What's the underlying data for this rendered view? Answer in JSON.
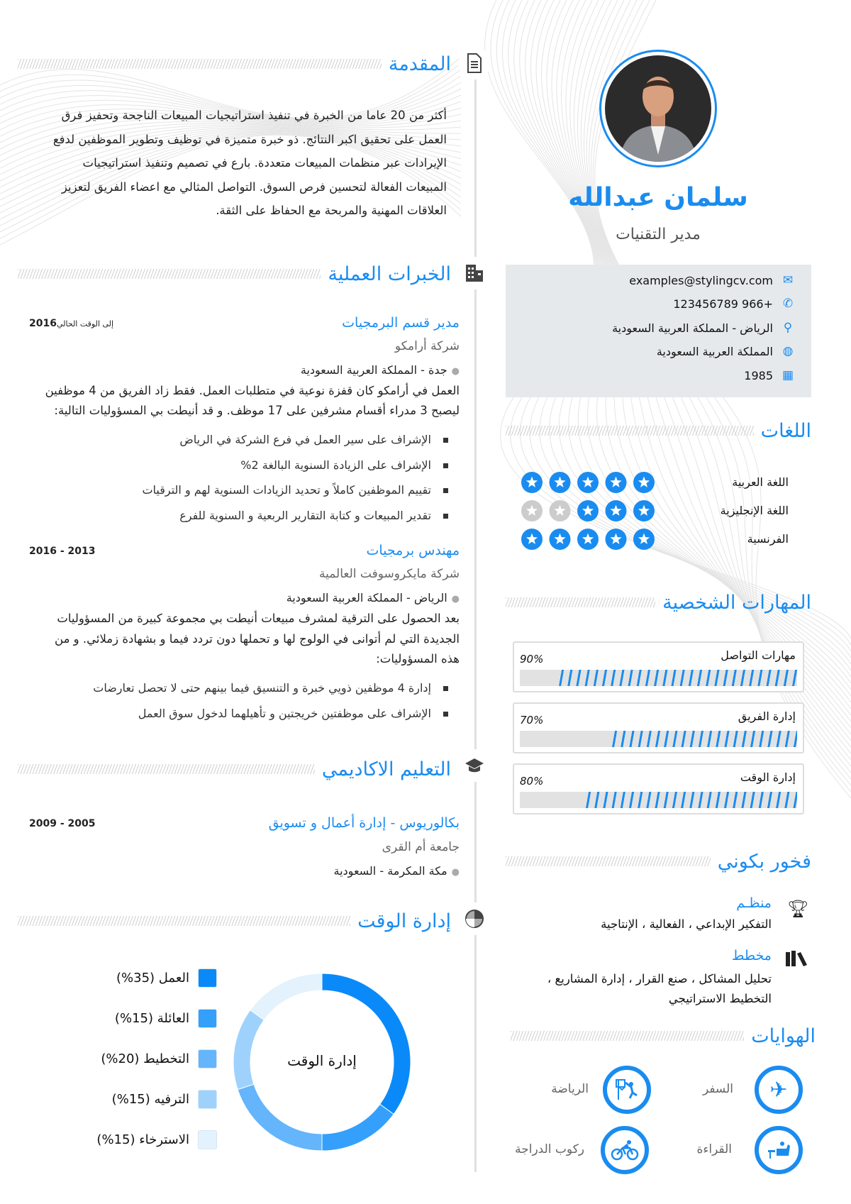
{
  "profile": {
    "name": "سلمان عبدالله",
    "title": "مدير التقنيات"
  },
  "contact": [
    {
      "icon": "envelope-icon",
      "value": "examples@stylingcv.com"
    },
    {
      "icon": "phone-icon",
      "value": "123456789 966+"
    },
    {
      "icon": "map-pin-icon",
      "value": "الرياض - المملكة العربية السعودية"
    },
    {
      "icon": "globe-icon",
      "value": "المملكة العربية السعودية"
    },
    {
      "icon": "calendar-icon",
      "value": "1985"
    }
  ],
  "sections": {
    "intro": "المقدمة",
    "experience": "الخبرات العملية",
    "education": "التعليم الاكاديمي",
    "time": "إدارة الوقت",
    "languages": "اللغات",
    "skills": "المهارات الشخصية",
    "achievements": "فخور بكوني",
    "hobbies": "الهوايات"
  },
  "intro": {
    "text": "أكثر من 20 عاما من الخبرة في تنفيذ استراتيجيات المبيعات الناجحة وتحفيز فرق العمل على تحقيق اكبر النتائج. ذو خبرة متميزة في توظيف وتطوير الموظفين لدفع الإيرادات عبر منظمات المبيعات متعددة. بارع في تصميم وتنفيذ استراتيجيات المبيعات الفعالة لتحسين فرص السوق. التواصل المثالي مع اعضاء الفريق لتعزيز العلاقات المهنية والمربحة مع الحفاظ على الثقة."
  },
  "experience": [
    {
      "title": "مدير قسم البرمجيات",
      "company": "شركة أرامكو",
      "location": "جدة - المملكة العربية السعودية",
      "date_year": "2016",
      "date_text": "إلى الوقت الحالي",
      "description": "العمل في أرامكو كان قفزة نوعية في متطلبات العمل. فقط زاد الفريق من 4 موظفين ليصبح 3 مدراء أقسام مشرفين على 17 موظف. و قد أنيطت بي المسؤوليات التالية:",
      "bullets": [
        "الإشراف على سير العمل في فرع الشركة في الرياض",
        "الإشراف على الزيادة السنوية البالغة 2%",
        "تقييم الموظفين كاملاً و تحديد الزيادات السنوية لهم و الترقيات",
        "تقدير المبيعات و كتابة التقارير الربعية و السنوية للفرع"
      ]
    },
    {
      "title": "مهندس برمجيات",
      "company": "شركة مايكروسوفت العالمية",
      "location": "الرياض - المملكة العربية السعودية",
      "date_year": "2016 - 2013",
      "date_text": "",
      "description": "بعد الحصول على الترقية لمشرف مبيعات أنيطت بي مجموعة كبيرة من المسؤوليات الجديدة التي لم أتوانى في الولوج لها و تحملها دون تردد فيما و بشهادة زملائي. و من هذه المسؤوليات:",
      "bullets": [
        "إدارة 4 موظفين ذويي خبرة و التنسيق فيما بينهم حتى لا تحصل تعارضات",
        "الإشراف على موظفتين خريجتين و تأهيلهما لدخول سوق العمل"
      ]
    }
  ],
  "education": [
    {
      "title": "بكالوريوس - إدارة أعمال و تسويق",
      "school": "جامعة أم القرى",
      "location": "مكة المكرمة - السعودية",
      "date": "2009 - 2005"
    }
  ],
  "languages": [
    {
      "name": "اللغة العربية",
      "rating": 5
    },
    {
      "name": "اللغة الإنجليزية",
      "rating": 3
    },
    {
      "name": "الفرنسية",
      "rating": 5
    }
  ],
  "skills": [
    {
      "name": "مهارات التواصل",
      "label": "90%",
      "value": 90
    },
    {
      "name": "إدارة الفريق",
      "label": "70%",
      "value": 70
    },
    {
      "name": "إدارة الوقت",
      "label": "80%",
      "value": 80
    }
  ],
  "achievements": [
    {
      "icon": "trophy-icon",
      "title": "منظـم",
      "text": "التفكير الإبداعي ، الفعالية ، الإنتاجية"
    },
    {
      "icon": "books-icon",
      "title": "مخطط",
      "text": "تحليل المشاكل ، صنع القرار ، إدارة المشاريع ، التخطيط الاستراتيجي"
    }
  ],
  "hobbies": [
    {
      "icon": "airplane-icon",
      "label": "السفر"
    },
    {
      "icon": "basketball-icon",
      "label": "الرياضة"
    },
    {
      "icon": "reading-icon",
      "label": "القراءة"
    },
    {
      "icon": "bicycle-icon",
      "label": "ركوب الدراجة"
    }
  ],
  "chart_data": {
    "type": "pie",
    "center_label": "إدارة الوقت",
    "categories": [
      "العمل",
      "العائلة",
      "التخطيط",
      "الترفيه",
      "الاسترخاء"
    ],
    "values": [
      35,
      15,
      20,
      15,
      15
    ],
    "legend": [
      "العمل (35%)",
      "العائلة (15%)",
      "التخطيط (20%)",
      "الترفيه (15%)",
      "الاسترخاء (15%)"
    ],
    "colors": [
      "#0a8af8",
      "#34a0fb",
      "#64b5fb",
      "#9ed2fd",
      "#e3f2fd"
    ],
    "legend_position": "left"
  },
  "colors": {
    "accent": "#1a8cf0",
    "contact_bg": "#e5e9ec",
    "star_off": "#cccccc"
  }
}
